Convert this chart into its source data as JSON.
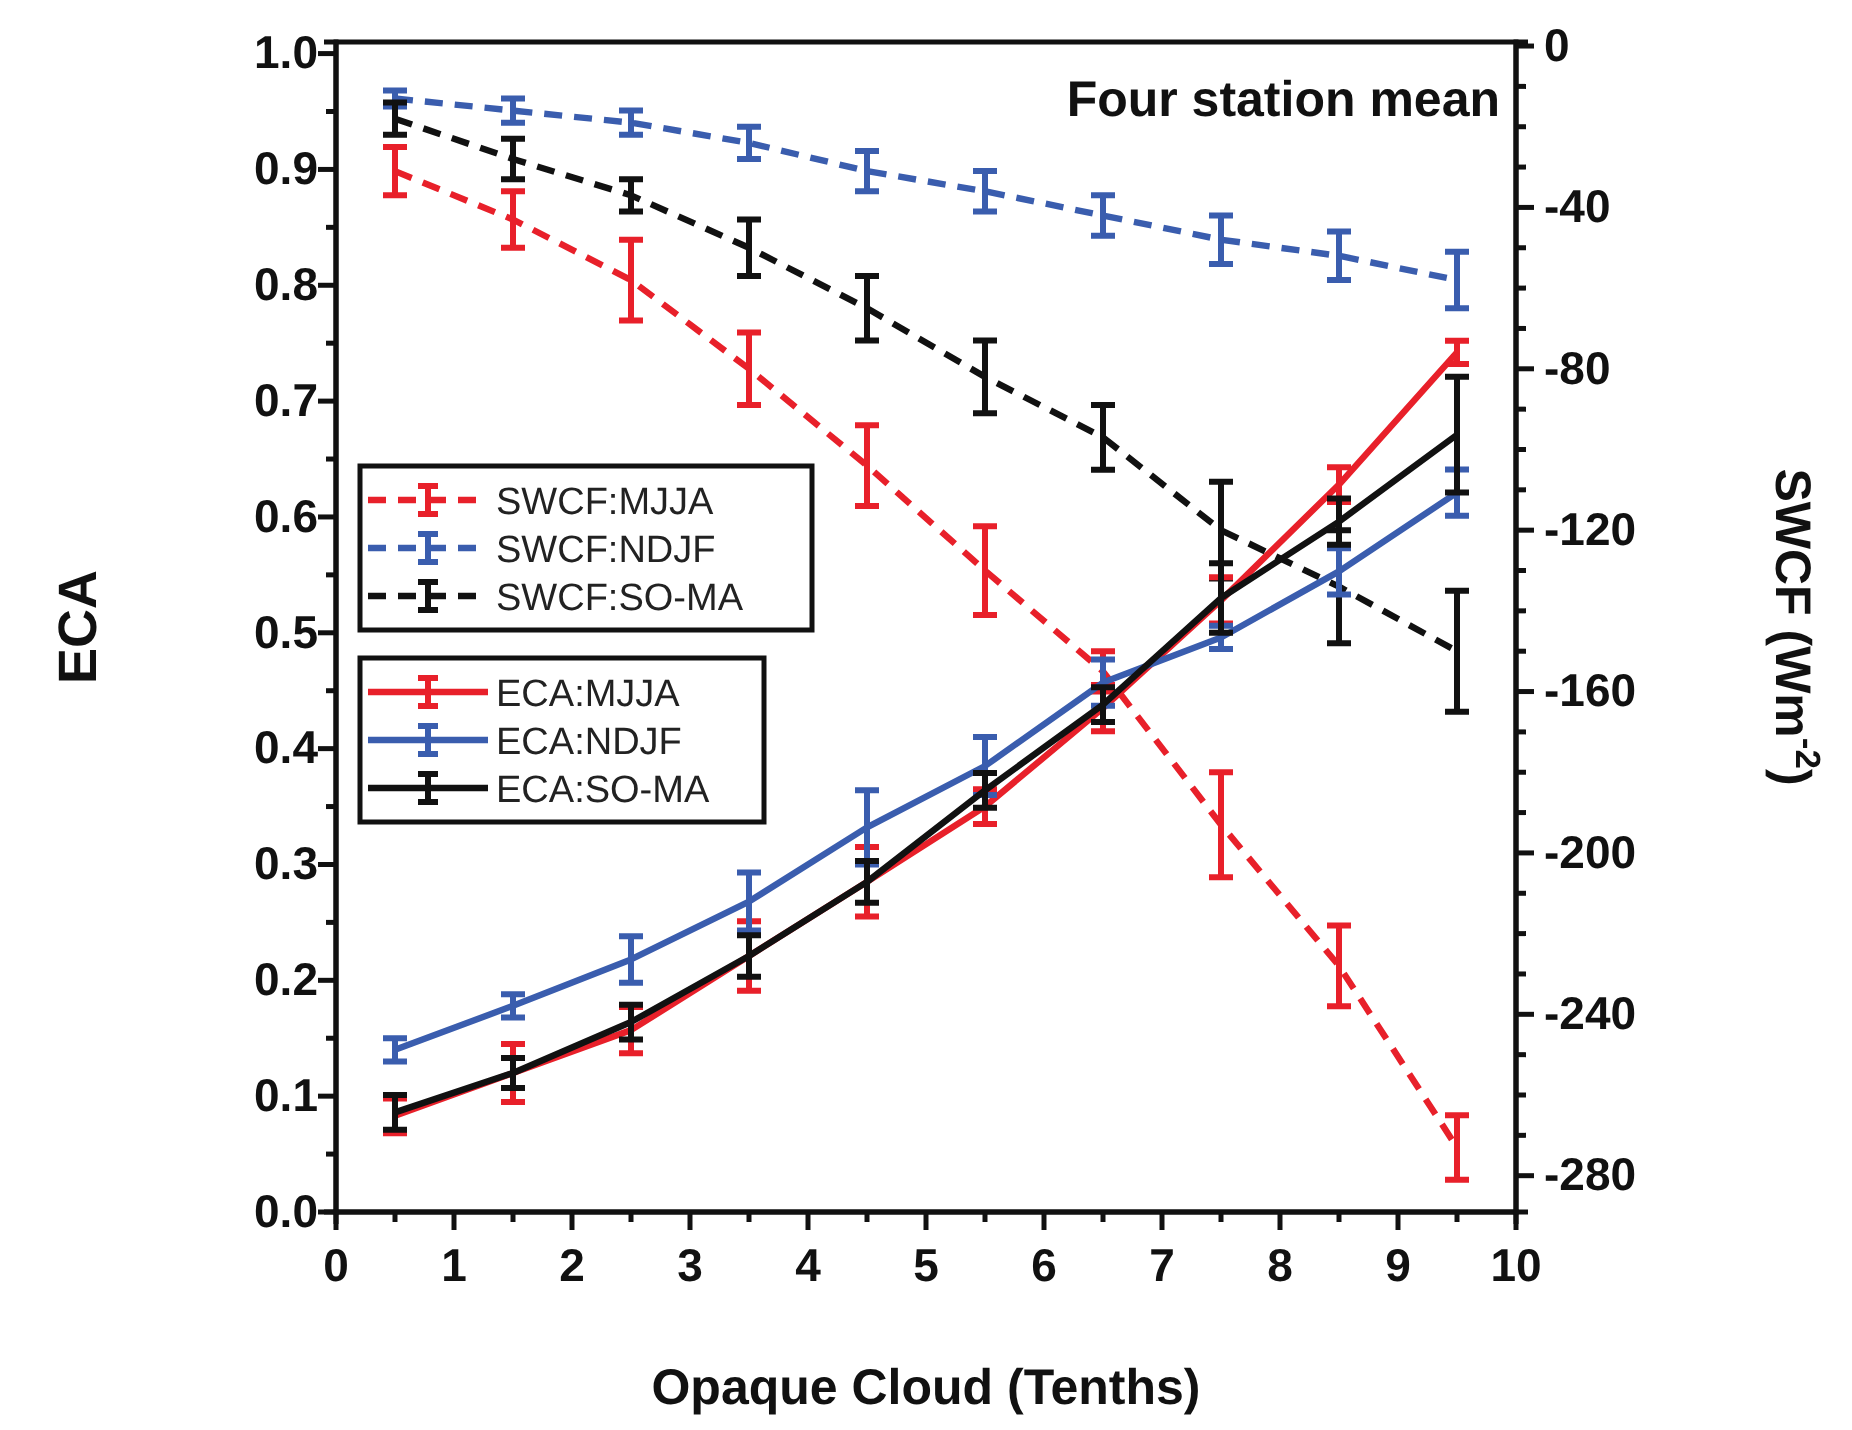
{
  "chart_data": {
    "type": "line",
    "title": "Four station mean",
    "xlabel": "Opaque Cloud (Tenths)",
    "ylabel": "ECA",
    "y2label": "SWCF (Wm$^{-2}$)",
    "x": [
      0.5,
      1.5,
      2.5,
      3.5,
      4.5,
      5.5,
      6.5,
      7.5,
      8.5,
      9.5
    ],
    "xlim": [
      0,
      10
    ],
    "xticks": [
      0,
      {
        "value": 0.5,
        "label": null
      },
      1,
      {
        "value": 1.5,
        "label": null
      },
      2,
      {
        "value": 2.5,
        "label": null
      },
      3,
      {
        "value": 3.5,
        "label": null
      },
      4,
      {
        "value": 4.5,
        "label": null
      },
      5,
      {
        "value": 5.5,
        "label": null
      },
      6,
      {
        "value": 6.5,
        "label": null
      },
      7,
      {
        "value": 7.5,
        "label": null
      },
      8,
      {
        "value": 8.5,
        "label": null
      },
      9,
      {
        "value": 9.5,
        "label": null
      },
      10
    ],
    "ylim": [
      0,
      1.01
    ],
    "yticks": [
      {
        "value": 0,
        "label": "0.0"
      },
      {
        "value": 0.05,
        "label": null
      },
      0.1,
      {
        "value": 0.15,
        "label": null
      },
      0.2,
      {
        "value": 0.25,
        "label": null
      },
      0.3,
      {
        "value": 0.35,
        "label": null
      },
      0.4,
      {
        "value": 0.45,
        "label": null
      },
      0.5,
      {
        "value": 0.55,
        "label": null
      },
      0.6,
      {
        "value": 0.65,
        "label": null
      },
      0.7,
      {
        "value": 0.75,
        "label": null
      },
      0.8,
      {
        "value": 0.85,
        "label": null
      },
      0.9,
      {
        "value": 0.95,
        "label": null
      },
      {
        "value": 1,
        "label": "1.0"
      }
    ],
    "y2lim": [
      -289,
      1
    ],
    "y2ticks": [
      0,
      {
        "value": -10,
        "label": null
      },
      {
        "value": -20,
        "label": null
      },
      {
        "value": -30,
        "label": null
      },
      -40,
      {
        "value": -50,
        "label": null
      },
      {
        "value": -60,
        "label": null
      },
      {
        "value": -70,
        "label": null
      },
      -80,
      {
        "value": -90,
        "label": null
      },
      {
        "value": -100,
        "label": null
      },
      {
        "value": -110,
        "label": null
      },
      -120,
      {
        "value": -130,
        "label": null
      },
      {
        "value": -140,
        "label": null
      },
      {
        "value": -150,
        "label": null
      },
      -160,
      {
        "value": -170,
        "label": null
      },
      {
        "value": -180,
        "label": null
      },
      {
        "value": -190,
        "label": null
      },
      -200,
      {
        "value": -210,
        "label": null
      },
      {
        "value": -220,
        "label": null
      },
      {
        "value": -230,
        "label": null
      },
      -240,
      {
        "value": -250,
        "label": null
      },
      {
        "value": -260,
        "label": null
      },
      {
        "value": -270,
        "label": null
      },
      -280
    ],
    "legend": "left",
    "grid": false,
    "series": [
      {
        "name": "SWCF:MJJA",
        "color": "#e8202a",
        "axis": "y2",
        "line_style": "dashed",
        "values": [
          -31,
          -43,
          -58,
          -80,
          -104,
          -130,
          -155,
          -193,
          -228,
          -273
        ],
        "errors": [
          6,
          7,
          10,
          9,
          10,
          11,
          5,
          13,
          10,
          8
        ]
      },
      {
        "name": "SWCF:NDJF",
        "color": "#3a5dae",
        "axis": "y2",
        "line_style": "dashed",
        "values": [
          -13,
          -16,
          -19,
          -24,
          -31,
          -36,
          -42,
          -48,
          -52,
          -58
        ],
        "errors": [
          2,
          3,
          3,
          4,
          5,
          5,
          5,
          6,
          6,
          7
        ]
      },
      {
        "name": "SWCF:SO-MA",
        "color": "#111111",
        "axis": "y2",
        "line_style": "dashed",
        "values": [
          -18,
          -28,
          -37,
          -50,
          -65,
          -82,
          -97,
          -120,
          -134,
          -150
        ],
        "errors": [
          4,
          5,
          4,
          7,
          8,
          9,
          8,
          12,
          14,
          15
        ]
      },
      {
        "name": "ECA:MJJA",
        "color": "#e8202a",
        "line_style": "solid",
        "values": [
          0.083,
          0.12,
          0.157,
          0.221,
          0.285,
          0.35,
          0.435,
          0.528,
          0.628,
          0.742
        ],
        "errors": [
          0.015,
          0.025,
          0.02,
          0.03,
          0.03,
          0.015,
          0.02,
          0.02,
          0.015,
          0.01
        ]
      },
      {
        "name": "ECA:NDJF",
        "color": "#3a5dae",
        "line_style": "solid",
        "values": [
          0.14,
          0.178,
          0.218,
          0.268,
          0.332,
          0.385,
          0.457,
          0.496,
          0.553,
          0.621
        ],
        "errors": [
          0.01,
          0.01,
          0.02,
          0.025,
          0.032,
          0.025,
          0.02,
          0.01,
          0.02,
          0.02
        ]
      },
      {
        "name": "ECA:SO-MA",
        "color": "#111111",
        "line_style": "solid",
        "values": [
          0.086,
          0.12,
          0.164,
          0.221,
          0.285,
          0.364,
          0.438,
          0.53,
          0.596,
          0.671
        ],
        "errors": [
          0.015,
          0.013,
          0.015,
          0.018,
          0.018,
          0.015,
          0.015,
          0.03,
          0.02,
          0.05
        ]
      }
    ]
  }
}
